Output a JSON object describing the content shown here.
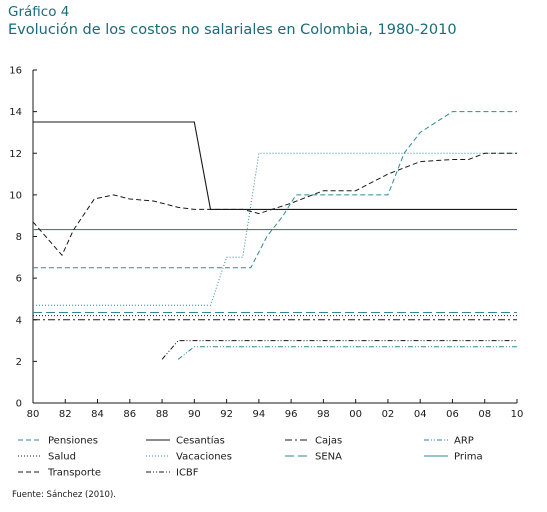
{
  "figure": {
    "label": "Gráfico 4",
    "title": "Evolución de los costos no salariales en Colombia, 1980-2010",
    "source": "Fuente: Sánchez (2010)."
  },
  "chart_data": {
    "type": "line",
    "title": "Evolución de los costos no salariales en Colombia, 1980-2010",
    "xlabel": "",
    "ylabel": "",
    "xlim": [
      1980,
      2010
    ],
    "ylim": [
      0,
      16
    ],
    "x_ticks": [
      1980,
      1982,
      1984,
      1986,
      1988,
      1990,
      1992,
      1994,
      1996,
      1998,
      2000,
      2002,
      2004,
      2006,
      2008,
      2010
    ],
    "x_tick_labels": [
      "80",
      "82",
      "84",
      "86",
      "88",
      "90",
      "92",
      "94",
      "96",
      "98",
      "00",
      "02",
      "04",
      "06",
      "08",
      "10"
    ],
    "y_ticks": [
      0,
      2,
      4,
      6,
      8,
      10,
      12,
      14,
      16
    ],
    "y_tick_labels": [
      "0",
      "2",
      "4",
      "6",
      "8",
      "10",
      "12",
      "14",
      "16"
    ],
    "grid": false,
    "legend_position": "bottom",
    "series": [
      {
        "name": "Pensiones",
        "color": "#2e8a95",
        "dash": "dashed",
        "points": [
          [
            1980,
            6.5
          ],
          [
            1993.5,
            6.5
          ],
          [
            1994.5,
            8.0
          ],
          [
            1995.5,
            9.0
          ],
          [
            1996.3,
            10.0
          ],
          [
            2002,
            10.0
          ],
          [
            2003,
            12.0
          ],
          [
            2004,
            13.0
          ],
          [
            2006,
            14.0
          ],
          [
            2010,
            14.0
          ]
        ]
      },
      {
        "name": "Cesantías",
        "color": "#1a1a1a",
        "dash": "solid",
        "points": [
          [
            1980,
            13.5
          ],
          [
            1990,
            13.5
          ],
          [
            1991,
            9.3
          ],
          [
            2010,
            9.3
          ]
        ]
      },
      {
        "name": "Cajas",
        "color": "#1a1a1a",
        "dash": "dashdot",
        "points": [
          [
            1980,
            4.0
          ],
          [
            2010,
            4.0
          ]
        ]
      },
      {
        "name": "ARP",
        "color": "#2e8a95",
        "dash": "dashdotdot",
        "points": [
          [
            1989,
            2.1
          ],
          [
            1990,
            2.7
          ],
          [
            2010,
            2.7
          ]
        ]
      },
      {
        "name": "Salud",
        "color": "#1a1a1a",
        "dash": "dotted",
        "points": [
          [
            1980,
            4.2
          ],
          [
            2010,
            4.2
          ]
        ]
      },
      {
        "name": "Vacaciones",
        "color": "#2e8a95",
        "dash": "dotted",
        "points": [
          [
            1980,
            4.7
          ],
          [
            1991,
            4.7
          ],
          [
            1992,
            7.0
          ],
          [
            1993,
            7.0
          ],
          [
            1994,
            12.0
          ],
          [
            2010,
            12.0
          ]
        ]
      },
      {
        "name": "SENA",
        "color": "#2e8a95",
        "dash": "longdash",
        "points": [
          [
            1980,
            4.35
          ],
          [
            2010,
            4.35
          ]
        ]
      },
      {
        "name": "Prima",
        "color": "#2e8a95",
        "dash": "solid",
        "points": [
          [
            1980,
            8.33
          ],
          [
            2010,
            8.33
          ]
        ]
      },
      {
        "name": "Transporte",
        "color": "#1a1a1a",
        "dash": "dashed",
        "points": [
          [
            1980,
            8.7
          ],
          [
            1981.8,
            7.1
          ],
          [
            1982.5,
            8.3
          ],
          [
            1983.8,
            9.8
          ],
          [
            1985,
            10.0
          ],
          [
            1986,
            9.8
          ],
          [
            1987.5,
            9.7
          ],
          [
            1989,
            9.4
          ],
          [
            1990,
            9.3
          ],
          [
            1993,
            9.3
          ],
          [
            1994,
            9.1
          ],
          [
            1996,
            9.6
          ],
          [
            1998,
            10.2
          ],
          [
            2000,
            10.2
          ],
          [
            2002,
            11.0
          ],
          [
            2004,
            11.6
          ],
          [
            2006,
            11.7
          ],
          [
            2007,
            11.7
          ],
          [
            2008,
            12.0
          ],
          [
            2010,
            12.0
          ]
        ]
      },
      {
        "name": "ICBF",
        "color": "#1a1a1a",
        "dash": "dashdotdot",
        "points": [
          [
            1988,
            2.1
          ],
          [
            1989,
            3.0
          ],
          [
            2010,
            3.0
          ]
        ]
      }
    ]
  }
}
